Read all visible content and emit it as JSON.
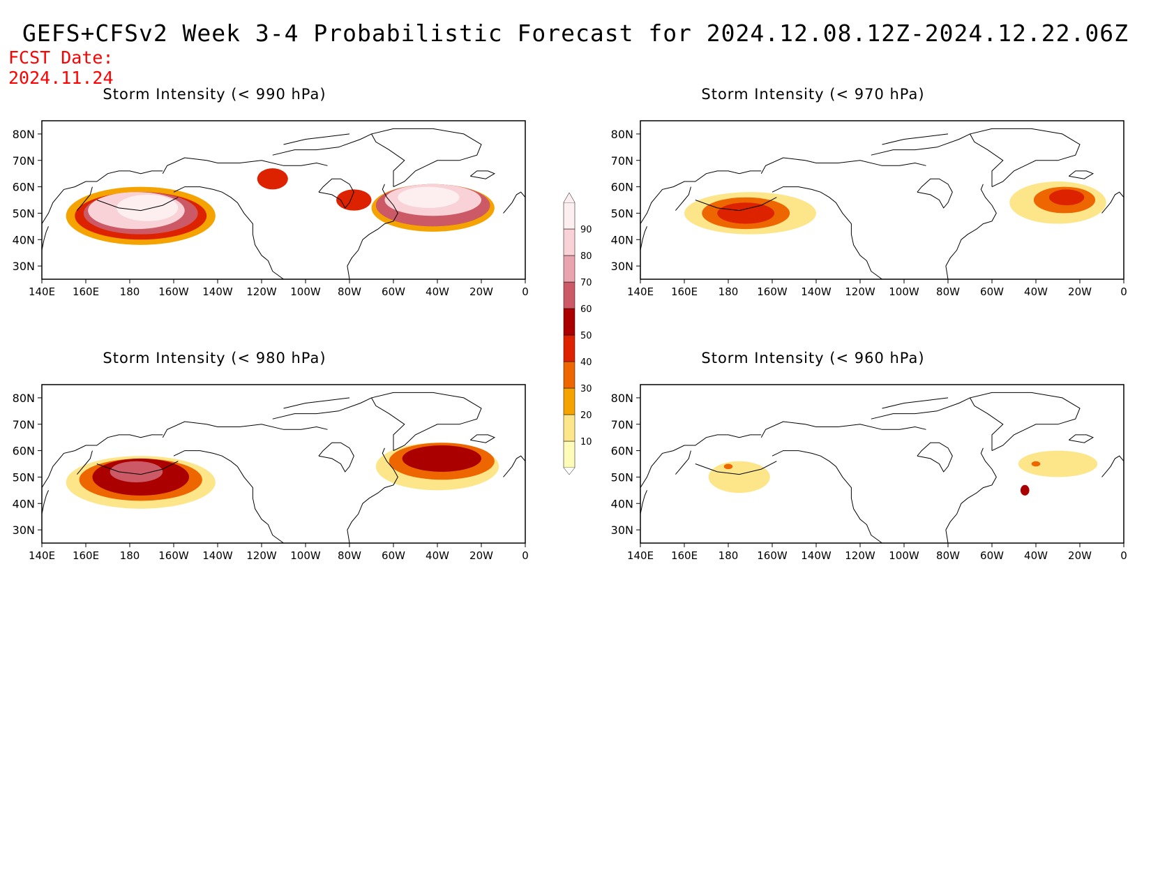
{
  "header": {
    "title": "GEFS+CFSv2 Week 3-4 Probabilistic Forecast for 2024.12.08.12Z-2024.12.22.06Z",
    "fcst_label": "FCST Date:",
    "fcst_date": "2024.11.24"
  },
  "axes": {
    "lat_ticks": [
      "80N",
      "70N",
      "60N",
      "50N",
      "40N",
      "30N"
    ],
    "lon_ticks": [
      "140E",
      "160E",
      "180",
      "160W",
      "140W",
      "120W",
      "100W",
      "80W",
      "60W",
      "40W",
      "20W",
      "0"
    ],
    "lat_values": [
      80,
      70,
      60,
      50,
      40,
      30
    ],
    "lon_values": [
      140,
      160,
      180,
      200,
      220,
      240,
      260,
      280,
      300,
      320,
      340,
      360
    ],
    "lat_range": [
      25,
      85
    ],
    "lon_range": [
      140,
      360
    ]
  },
  "panels": [
    {
      "id": "p990",
      "title": "Storm Intensity (< 990 hPa)",
      "blobs": [
        {
          "lon": 185,
          "lat": 49,
          "rx": 34,
          "ry": 11,
          "level": 20
        },
        {
          "lon": 185,
          "lat": 49,
          "rx": 30,
          "ry": 9,
          "level": 40
        },
        {
          "lon": 185,
          "lat": 50,
          "rx": 26,
          "ry": 8,
          "level": 60
        },
        {
          "lon": 183,
          "lat": 51,
          "rx": 22,
          "ry": 7,
          "level": 80
        },
        {
          "lon": 188,
          "lat": 52,
          "rx": 14,
          "ry": 5,
          "level": 95
        },
        {
          "lon": 245,
          "lat": 63,
          "rx": 7,
          "ry": 4,
          "level": 40
        },
        {
          "lon": 282,
          "lat": 55,
          "rx": 8,
          "ry": 4,
          "level": 40
        },
        {
          "lon": 318,
          "lat": 52,
          "rx": 28,
          "ry": 9,
          "level": 20
        },
        {
          "lon": 318,
          "lat": 53,
          "rx": 26,
          "ry": 8,
          "level": 60
        },
        {
          "lon": 318,
          "lat": 55,
          "rx": 22,
          "ry": 6,
          "level": 80
        },
        {
          "lon": 316,
          "lat": 56,
          "rx": 14,
          "ry": 4,
          "level": 95
        }
      ]
    },
    {
      "id": "p970",
      "title": "Storm Intensity (< 970 hPa)",
      "blobs": [
        {
          "lon": 190,
          "lat": 50,
          "rx": 30,
          "ry": 8,
          "level": 15
        },
        {
          "lon": 188,
          "lat": 50,
          "rx": 20,
          "ry": 6,
          "level": 30
        },
        {
          "lon": 188,
          "lat": 50,
          "rx": 13,
          "ry": 4,
          "level": 42
        },
        {
          "lon": 330,
          "lat": 54,
          "rx": 22,
          "ry": 8,
          "level": 15
        },
        {
          "lon": 333,
          "lat": 55,
          "rx": 14,
          "ry": 5,
          "level": 30
        },
        {
          "lon": 334,
          "lat": 56,
          "rx": 8,
          "ry": 3,
          "level": 42
        }
      ]
    },
    {
      "id": "p980",
      "title": "Storm Intensity (< 980 hPa)",
      "blobs": [
        {
          "lon": 185,
          "lat": 48,
          "rx": 34,
          "ry": 10,
          "level": 15
        },
        {
          "lon": 185,
          "lat": 49,
          "rx": 28,
          "ry": 8,
          "level": 35
        },
        {
          "lon": 185,
          "lat": 50,
          "rx": 22,
          "ry": 7,
          "level": 55
        },
        {
          "lon": 183,
          "lat": 52,
          "rx": 12,
          "ry": 4,
          "level": 65
        },
        {
          "lon": 320,
          "lat": 54,
          "rx": 28,
          "ry": 9,
          "level": 15
        },
        {
          "lon": 322,
          "lat": 56,
          "rx": 24,
          "ry": 7,
          "level": 35
        },
        {
          "lon": 322,
          "lat": 57,
          "rx": 18,
          "ry": 5,
          "level": 55
        }
      ]
    },
    {
      "id": "p960",
      "title": "Storm Intensity (< 960 hPa)",
      "blobs": [
        {
          "lon": 185,
          "lat": 50,
          "rx": 14,
          "ry": 6,
          "level": 15
        },
        {
          "lon": 180,
          "lat": 54,
          "rx": 2,
          "ry": 1,
          "level": 30
        },
        {
          "lon": 330,
          "lat": 55,
          "rx": 18,
          "ry": 5,
          "level": 15
        },
        {
          "lon": 315,
          "lat": 45,
          "rx": 2,
          "ry": 2,
          "level": 55
        },
        {
          "lon": 320,
          "lat": 55,
          "rx": 2,
          "ry": 1,
          "level": 35
        }
      ]
    }
  ],
  "colorbar": {
    "levels": [
      10,
      20,
      30,
      40,
      50,
      60,
      70,
      80,
      90
    ],
    "colors": [
      "#fffbb8",
      "#fde68a",
      "#f4a300",
      "#ee6600",
      "#dd2200",
      "#aa0000",
      "#cc5a66",
      "#e9a4ad",
      "#f8d2d6",
      "#fdeef0"
    ]
  }
}
